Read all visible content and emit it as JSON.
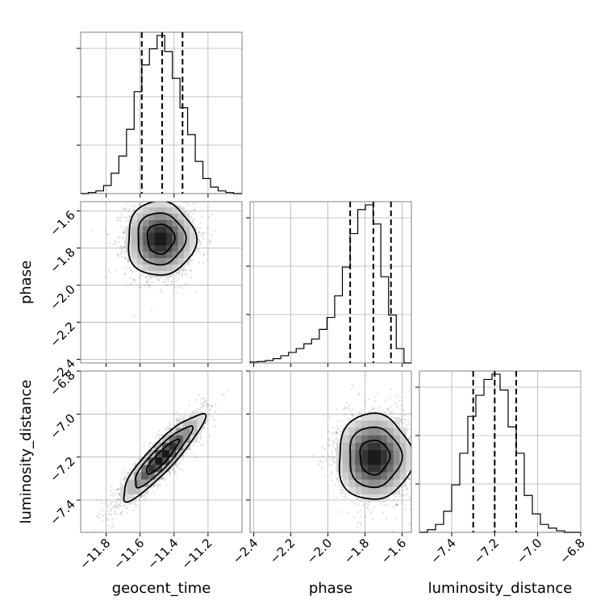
{
  "chart_data": {
    "type": "corner",
    "parameters": [
      "geocent_time",
      "phase",
      "luminosity_distance"
    ],
    "ranges": {
      "geocent_time": [
        -11.95,
        -11.0
      ],
      "phase": [
        -2.42,
        -1.55
      ],
      "luminosity_distance": [
        -7.55,
        -6.8
      ]
    },
    "ticks": {
      "geocent_time": [
        -11.8,
        -11.6,
        -11.4,
        -11.2
      ],
      "phase": [
        -2.4,
        -2.2,
        -2.0,
        -1.8,
        -1.6
      ],
      "luminosity_distance": [
        -7.4,
        -7.2,
        -7.0,
        -6.8
      ]
    },
    "tick_labels": {
      "geocent_time": [
        "−11.8",
        "−11.6",
        "−11.4",
        "−11.2"
      ],
      "phase": [
        "−2.4",
        "−2.2",
        "−2.0",
        "−1.8",
        "−1.6"
      ],
      "luminosity_distance": [
        "−7.4",
        "−7.2",
        "−7.0",
        "−6.8"
      ]
    },
    "grid": true,
    "marginals": [
      {
        "parameter": "geocent_time",
        "bin_edges": [
          -11.95,
          -11.905,
          -11.86,
          -11.815,
          -11.77,
          -11.725,
          -11.68,
          -11.635,
          -11.59,
          -11.545,
          -11.5,
          -11.455,
          -11.41,
          -11.365,
          -11.32,
          -11.275,
          -11.23,
          -11.185,
          -11.14,
          -11.095,
          -11.05,
          -11.0
        ],
        "counts": [
          0,
          2,
          5,
          15,
          38,
          70,
          120,
          190,
          240,
          270,
          295,
          265,
          215,
          160,
          110,
          60,
          28,
          12,
          5,
          2,
          0
        ],
        "quantiles": [
          -11.59,
          -11.47,
          -11.35
        ]
      },
      {
        "parameter": "phase",
        "bin_edges": [
          -2.42,
          -2.3785,
          -2.337,
          -2.2955,
          -2.254,
          -2.2125,
          -2.171,
          -2.1295,
          -2.088,
          -2.0465,
          -2.005,
          -1.9635,
          -1.922,
          -1.8805,
          -1.839,
          -1.7975,
          -1.756,
          -1.7145,
          -1.673,
          -1.6315,
          -1.59,
          -1.55
        ],
        "counts": [
          2,
          3,
          5,
          9,
          15,
          22,
          30,
          40,
          50,
          70,
          95,
          140,
          200,
          270,
          320,
          330,
          290,
          180,
          100,
          30,
          0
        ],
        "quantiles": [
          -1.88,
          -1.755,
          -1.66
        ]
      },
      {
        "parameter": "luminosity_distance",
        "bin_edges": [
          -7.55,
          -7.5125,
          -7.475,
          -7.4375,
          -7.4,
          -7.3625,
          -7.325,
          -7.2875,
          -7.25,
          -7.2125,
          -7.175,
          -7.1375,
          -7.1,
          -7.0625,
          -7.025,
          -6.9875,
          -6.95,
          -6.9125,
          -6.875,
          -6.8375,
          -6.8
        ],
        "counts": [
          0,
          5,
          15,
          40,
          90,
          150,
          220,
          260,
          290,
          300,
          270,
          200,
          150,
          70,
          35,
          15,
          8,
          3,
          0,
          0
        ],
        "quantiles": [
          -7.3,
          -7.2,
          -7.1
        ]
      }
    ],
    "joint": [
      {
        "x": "geocent_time",
        "y": "phase",
        "mean": [
          -11.48,
          -1.75
        ],
        "std": [
          0.1,
          0.1
        ],
        "correlation": 0.0,
        "points": 2500
      },
      {
        "x": "geocent_time",
        "y": "luminosity_distance",
        "mean": [
          -11.47,
          -7.2
        ],
        "std": [
          0.12,
          0.1
        ],
        "correlation": 0.9,
        "points": 2500
      },
      {
        "x": "phase",
        "y": "luminosity_distance",
        "mean": [
          -1.75,
          -7.2
        ],
        "std": [
          0.1,
          0.1
        ],
        "correlation": 0.0,
        "points": 2500
      }
    ]
  }
}
